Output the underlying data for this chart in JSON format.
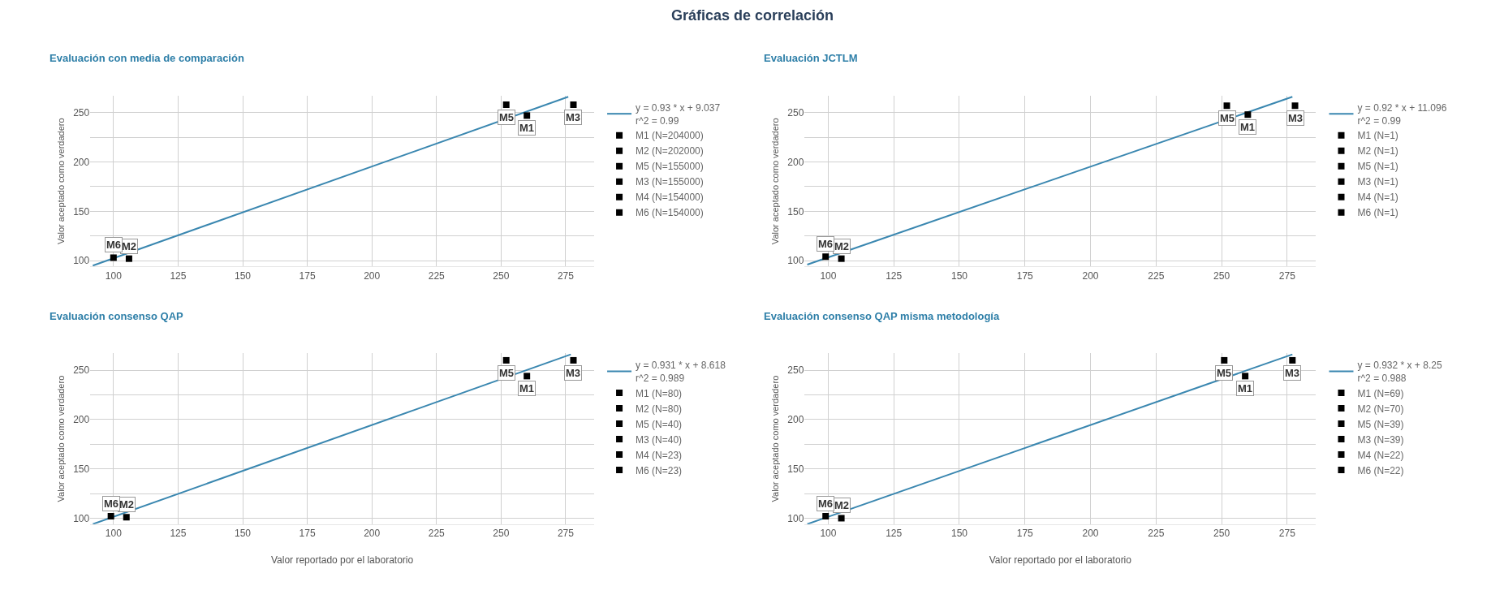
{
  "chart_data": [
    {
      "type": "scatter",
      "title": "Evaluación con media de comparación",
      "ylabel": "Valor aceptado como verdadero",
      "xlim": [
        91,
        286
      ],
      "xticks": [
        100,
        125,
        150,
        175,
        200,
        225,
        250,
        275
      ],
      "ylim": [
        94,
        267
      ],
      "yticks": [
        100,
        {
          "value": 125,
          "label": null
        },
        150,
        {
          "value": 175,
          "label": null
        },
        200,
        {
          "value": 225,
          "label": null
        },
        250
      ],
      "grid": true,
      "legend": "right",
      "annotations": [
        "Gráficas de correlación",
        {
          "text": "M1",
          "x": 260,
          "y": 247
        },
        {
          "text": "M2",
          "x": 106,
          "y": 102
        },
        {
          "text": "M5",
          "x": 252,
          "y": 258
        },
        {
          "text": "M3",
          "x": 278,
          "y": 258
        },
        {
          "text": "M6",
          "x": 100,
          "y": 103
        }
      ],
      "series": [
        {
          "name": "y = 0.93 * x + 9.037\nr^2 = 0.99",
          "type": "line",
          "color": "#3a87b0",
          "marker": "none",
          "x": [
            92,
            276
          ],
          "values": [
            95,
            266
          ]
        },
        {
          "name": "M1 (N=204000)",
          "type": "scatter",
          "color": "#000000",
          "marker": "square",
          "x": [
            260
          ],
          "values": [
            247
          ]
        },
        {
          "name": "M2 (N=202000)",
          "type": "scatter",
          "color": "#000000",
          "marker": "square",
          "x": [
            106
          ],
          "values": [
            102
          ]
        },
        {
          "name": "M5 (N=155000)",
          "type": "scatter",
          "color": "#000000",
          "marker": "square",
          "x": [
            252
          ],
          "values": [
            258
          ]
        },
        {
          "name": "M3 (N=155000)",
          "type": "scatter",
          "color": "#000000",
          "marker": "square",
          "x": [
            278
          ],
          "values": [
            258
          ]
        },
        {
          "name": "M4 (N=154000)",
          "type": "scatter",
          "color": "#000000",
          "marker": "square",
          "x": [
            null
          ],
          "values": [
            null
          ]
        },
        {
          "name": "M6 (N=154000)",
          "type": "scatter",
          "color": "#000000",
          "marker": "square",
          "x": [
            100
          ],
          "values": [
            103
          ]
        }
      ]
    },
    {
      "type": "scatter",
      "title": "Evaluación JCTLM",
      "ylabel": "Valor aceptado como verdadero",
      "xlim": [
        91,
        286
      ],
      "xticks": [
        100,
        125,
        150,
        175,
        200,
        225,
        250,
        275
      ],
      "ylim": [
        94,
        267
      ],
      "yticks": [
        100,
        {
          "value": 125,
          "label": null
        },
        150,
        {
          "value": 175,
          "label": null
        },
        200,
        {
          "value": 225,
          "label": null
        },
        250
      ],
      "grid": true,
      "legend": "right",
      "annotations": [
        {
          "text": "M1",
          "x": 260,
          "y": 248
        },
        {
          "text": "M2",
          "x": 105,
          "y": 102
        },
        {
          "text": "M5",
          "x": 252,
          "y": 257
        },
        {
          "text": "M3",
          "x": 278,
          "y": 257
        },
        {
          "text": "M6",
          "x": 99,
          "y": 104
        }
      ],
      "series": [
        {
          "name": "y = 0.92 * x + 11.096\nr^2 = 0.99",
          "type": "line",
          "color": "#3a87b0",
          "marker": "none",
          "x": [
            92,
            277
          ],
          "values": [
            96,
            266
          ]
        },
        {
          "name": "M1 (N=1)",
          "type": "scatter",
          "color": "#000000",
          "marker": "square",
          "x": [
            260
          ],
          "values": [
            248
          ]
        },
        {
          "name": "M2 (N=1)",
          "type": "scatter",
          "color": "#000000",
          "marker": "square",
          "x": [
            105
          ],
          "values": [
            102
          ]
        },
        {
          "name": "M5 (N=1)",
          "type": "scatter",
          "color": "#000000",
          "marker": "square",
          "x": [
            252
          ],
          "values": [
            257
          ]
        },
        {
          "name": "M3 (N=1)",
          "type": "scatter",
          "color": "#000000",
          "marker": "square",
          "x": [
            278
          ],
          "values": [
            257
          ]
        },
        {
          "name": "M4 (N=1)",
          "type": "scatter",
          "color": "#000000",
          "marker": "square",
          "x": [
            null
          ],
          "values": [
            null
          ]
        },
        {
          "name": "M6 (N=1)",
          "type": "scatter",
          "color": "#000000",
          "marker": "square",
          "x": [
            99
          ],
          "values": [
            104
          ]
        }
      ]
    },
    {
      "type": "scatter",
      "title": "Evaluación consenso QAP",
      "ylabel": "Valor aceptado como verdadero",
      "xlabel": "Valor reportado por el laboratorio",
      "xlim": [
        91,
        286
      ],
      "xticks": [
        100,
        125,
        150,
        175,
        200,
        225,
        250,
        275
      ],
      "ylim": [
        94,
        267
      ],
      "yticks": [
        100,
        {
          "value": 125,
          "label": null
        },
        150,
        {
          "value": 175,
          "label": null
        },
        200,
        {
          "value": 225,
          "label": null
        },
        250
      ],
      "grid": true,
      "legend": "right",
      "annotations": [
        {
          "text": "M1",
          "x": 260,
          "y": 244
        },
        {
          "text": "M2",
          "x": 105,
          "y": 101
        },
        {
          "text": "M5",
          "x": 252,
          "y": 260
        },
        {
          "text": "M3",
          "x": 278,
          "y": 260
        },
        {
          "text": "M6",
          "x": 99,
          "y": 102
        }
      ],
      "series": [
        {
          "name": "y = 0.931 * x + 8.618\nr^2 = 0.989",
          "type": "line",
          "color": "#3a87b0",
          "marker": "none",
          "x": [
            92,
            277
          ],
          "values": [
            94,
            266
          ]
        },
        {
          "name": "M1 (N=80)",
          "type": "scatter",
          "color": "#000000",
          "marker": "square",
          "x": [
            260
          ],
          "values": [
            244
          ]
        },
        {
          "name": "M2 (N=80)",
          "type": "scatter",
          "color": "#000000",
          "marker": "square",
          "x": [
            105
          ],
          "values": [
            101
          ]
        },
        {
          "name": "M5 (N=40)",
          "type": "scatter",
          "color": "#000000",
          "marker": "square",
          "x": [
            252
          ],
          "values": [
            260
          ]
        },
        {
          "name": "M3 (N=40)",
          "type": "scatter",
          "color": "#000000",
          "marker": "square",
          "x": [
            278
          ],
          "values": [
            260
          ]
        },
        {
          "name": "M4 (N=23)",
          "type": "scatter",
          "color": "#000000",
          "marker": "square",
          "x": [
            null
          ],
          "values": [
            null
          ]
        },
        {
          "name": "M6 (N=23)",
          "type": "scatter",
          "color": "#000000",
          "marker": "square",
          "x": [
            99
          ],
          "values": [
            102
          ]
        }
      ]
    },
    {
      "type": "scatter",
      "title": "Evaluación consenso QAP misma metodología",
      "ylabel": "Valor aceptado como verdadero",
      "xlabel": "Valor reportado por el laboratorio",
      "xlim": [
        91,
        286
      ],
      "xticks": [
        100,
        125,
        150,
        175,
        200,
        225,
        250,
        275
      ],
      "ylim": [
        94,
        267
      ],
      "yticks": [
        100,
        {
          "value": 125,
          "label": null
        },
        150,
        {
          "value": 175,
          "label": null
        },
        200,
        {
          "value": 225,
          "label": null
        },
        250
      ],
      "grid": true,
      "legend": "right",
      "annotations": [
        {
          "text": "M1",
          "x": 259,
          "y": 244
        },
        {
          "text": "M2",
          "x": 105,
          "y": 100
        },
        {
          "text": "M5",
          "x": 251,
          "y": 260
        },
        {
          "text": "M3",
          "x": 277,
          "y": 260
        },
        {
          "text": "M6",
          "x": 99,
          "y": 102
        }
      ],
      "series": [
        {
          "name": "y = 0.932 * x + 8.25\nr^2 = 0.988",
          "type": "line",
          "color": "#3a87b0",
          "marker": "none",
          "x": [
            92,
            277
          ],
          "values": [
            94,
            266
          ]
        },
        {
          "name": "M1 (N=69)",
          "type": "scatter",
          "color": "#000000",
          "marker": "square",
          "x": [
            259
          ],
          "values": [
            244
          ]
        },
        {
          "name": "M2 (N=70)",
          "type": "scatter",
          "color": "#000000",
          "marker": "square",
          "x": [
            105
          ],
          "values": [
            100
          ]
        },
        {
          "name": "M5 (N=39)",
          "type": "scatter",
          "color": "#000000",
          "marker": "square",
          "x": [
            251
          ],
          "values": [
            260
          ]
        },
        {
          "name": "M3 (N=39)",
          "type": "scatter",
          "color": "#000000",
          "marker": "square",
          "x": [
            277
          ],
          "values": [
            260
          ]
        },
        {
          "name": "M4 (N=22)",
          "type": "scatter",
          "color": "#000000",
          "marker": "square",
          "x": [
            null
          ],
          "values": [
            null
          ]
        },
        {
          "name": "M6 (N=22)",
          "type": "scatter",
          "color": "#000000",
          "marker": "square",
          "x": [
            99
          ],
          "values": [
            102
          ]
        }
      ]
    }
  ]
}
